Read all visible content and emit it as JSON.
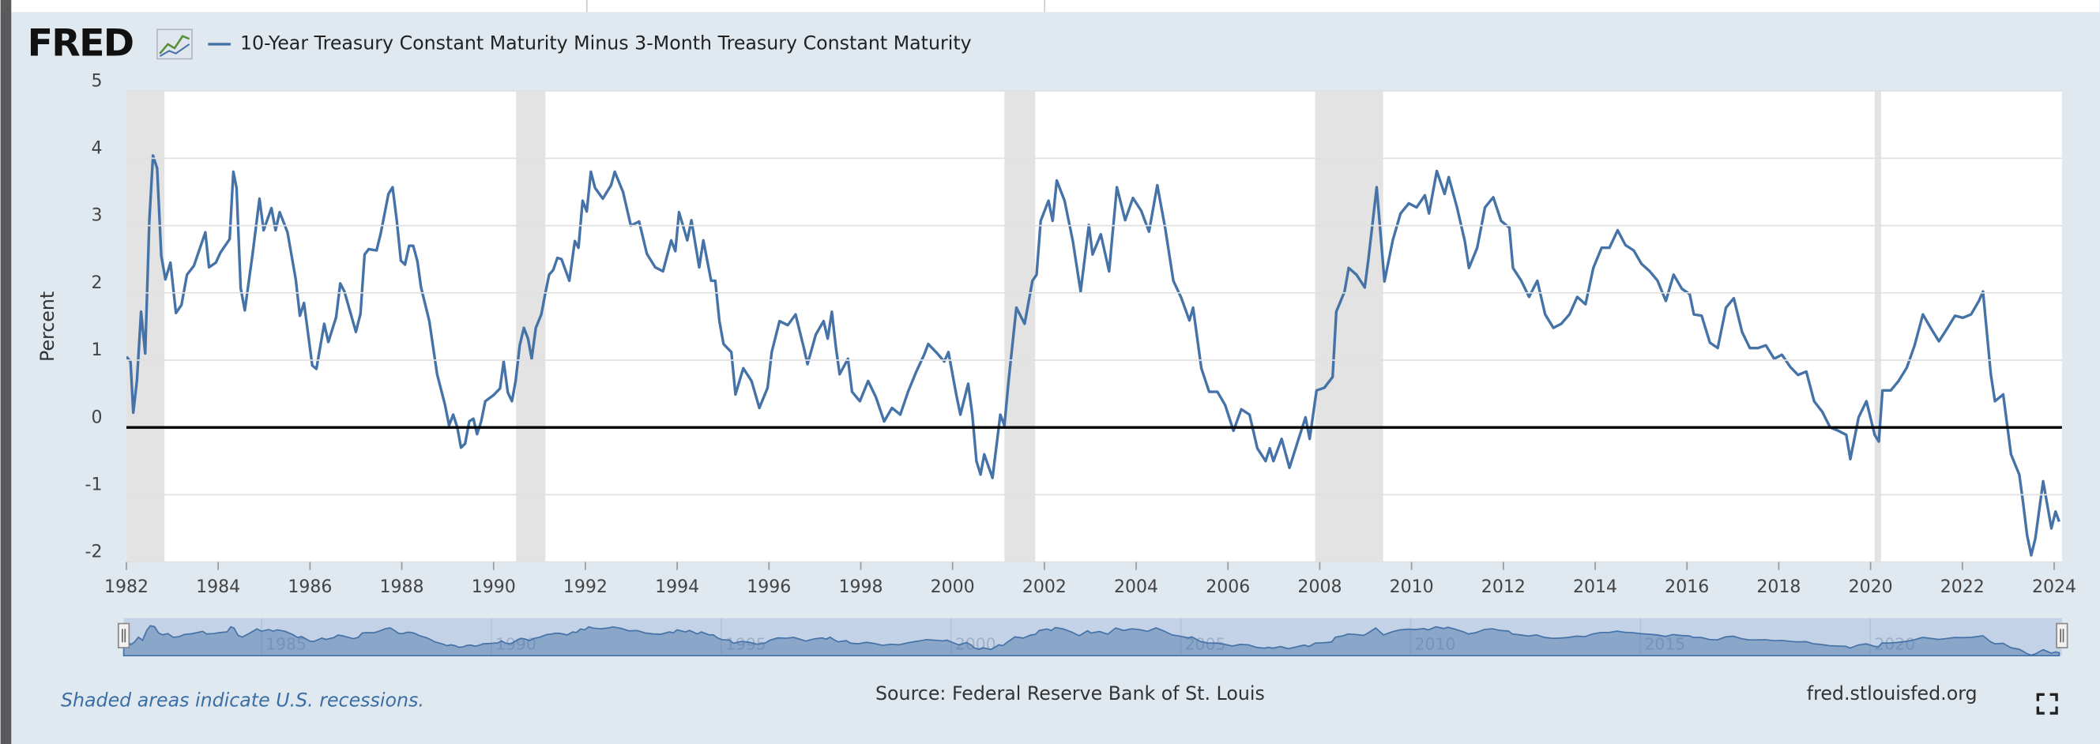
{
  "logo": "FRED",
  "chart_data": {
    "type": "line",
    "ylabel": "Percent",
    "xlim": [
      1982,
      2024.17
    ],
    "ylim": [
      -2,
      5
    ],
    "xticks": [
      1982,
      1984,
      1986,
      1988,
      1990,
      1992,
      1994,
      1996,
      1998,
      2000,
      2002,
      2004,
      2006,
      2008,
      2010,
      2012,
      2014,
      2016,
      2018,
      2020,
      2022,
      2024
    ],
    "yticks": [
      -2,
      -1,
      0,
      1,
      2,
      3,
      4,
      5
    ],
    "grid": true,
    "legend": "top-left",
    "reference_line": {
      "value": 0,
      "color": "#000000"
    },
    "recession_color": "#e3e3e3",
    "recessions": [
      [
        1981.58,
        1982.83
      ],
      [
        1990.49,
        1991.13
      ],
      [
        2001.13,
        2001.8
      ],
      [
        2007.9,
        2009.38
      ],
      [
        2020.09,
        2020.23
      ]
    ],
    "recession_note": "Shaded areas indicate U.S. recessions.",
    "source": "Source: Federal Reserve Bank of St. Louis",
    "site": "fred.stlouisfed.org",
    "navigator_xticks": [
      1985,
      1990,
      1995,
      2000,
      2005,
      2010,
      2015,
      2020
    ],
    "x": [
      1982.0,
      1982.09,
      1982.15,
      1982.23,
      1982.32,
      1982.41,
      1982.5,
      1982.58,
      1982.67,
      1982.76,
      1982.85,
      1982.96,
      1983.08,
      1983.2,
      1983.32,
      1983.47,
      1983.72,
      1983.8,
      1983.95,
      1984.05,
      1984.25,
      1984.33,
      1984.4,
      1984.49,
      1984.58,
      1984.75,
      1984.9,
      1984.99,
      1985.16,
      1985.25,
      1985.34,
      1985.51,
      1985.69,
      1985.78,
      1985.87,
      1986.05,
      1986.14,
      1986.31,
      1986.4,
      1986.57,
      1986.66,
      1986.75,
      1987.0,
      1987.1,
      1987.19,
      1987.28,
      1987.45,
      1987.54,
      1987.71,
      1987.8,
      1987.89,
      1987.98,
      1988.07,
      1988.16,
      1988.25,
      1988.34,
      1988.42,
      1988.6,
      1988.77,
      1988.94,
      1989.03,
      1989.12,
      1989.21,
      1989.29,
      1989.38,
      1989.47,
      1989.56,
      1989.64,
      1989.73,
      1989.82,
      1990.0,
      1990.14,
      1990.22,
      1990.31,
      1990.4,
      1990.48,
      1990.57,
      1990.66,
      1990.75,
      1990.83,
      1990.92,
      1991.04,
      1991.12,
      1991.21,
      1991.3,
      1991.39,
      1991.48,
      1991.65,
      1991.77,
      1991.85,
      1991.94,
      1992.03,
      1992.12,
      1992.21,
      1992.38,
      1992.56,
      1992.64,
      1992.82,
      1992.99,
      1993.17,
      1993.34,
      1993.52,
      1993.69,
      1993.87,
      1993.96,
      1994.04,
      1994.22,
      1994.31,
      1994.48,
      1994.57,
      1994.74,
      1994.83,
      1994.92,
      1995.01,
      1995.18,
      1995.27,
      1995.44,
      1995.62,
      1995.79,
      1995.97,
      1996.06,
      1996.23,
      1996.41,
      1996.58,
      1996.76,
      1996.84,
      1997.02,
      1997.19,
      1997.28,
      1997.37,
      1997.46,
      1997.54,
      1997.72,
      1997.81,
      1997.98,
      1998.16,
      1998.33,
      1998.51,
      1998.68,
      1998.86,
      1999.03,
      1999.21,
      1999.38,
      1999.47,
      1999.64,
      1999.82,
      1999.91,
      2000.08,
      2000.17,
      2000.34,
      2000.43,
      2000.52,
      2000.61,
      2000.69,
      2000.87,
      2001.04,
      2001.13,
      2001.22,
      2001.39,
      2001.57,
      2001.74,
      2001.83,
      2001.92,
      2002.09,
      2002.18,
      2002.27,
      2002.44,
      2002.62,
      2002.79,
      2002.97,
      2003.05,
      2003.23,
      2003.41,
      2003.58,
      2003.76,
      2003.93,
      2004.11,
      2004.28,
      2004.46,
      2004.63,
      2004.81,
      2004.98,
      2005.16,
      2005.24,
      2005.42,
      2005.59,
      2005.77,
      2005.94,
      2006.12,
      2006.29,
      2006.47,
      2006.64,
      2006.82,
      2006.91,
      2006.99,
      2007.17,
      2007.34,
      2007.52,
      2007.69,
      2007.78,
      2007.93,
      2008.1,
      2008.28,
      2008.36,
      2008.54,
      2008.63,
      2008.8,
      2008.98,
      2009.06,
      2009.24,
      2009.41,
      2009.59,
      2009.76,
      2009.94,
      2010.11,
      2010.29,
      2010.38,
      2010.55,
      2010.72,
      2010.81,
      2010.99,
      2011.16,
      2011.25,
      2011.43,
      2011.6,
      2011.78,
      2011.95,
      2012.13,
      2012.21,
      2012.39,
      2012.56,
      2012.74,
      2012.91,
      2013.09,
      2013.26,
      2013.44,
      2013.61,
      2013.79,
      2013.96,
      2014.14,
      2014.31,
      2014.49,
      2014.66,
      2014.84,
      2015.01,
      2015.19,
      2015.36,
      2015.54,
      2015.71,
      2015.89,
      2016.06,
      2016.15,
      2016.32,
      2016.5,
      2016.67,
      2016.85,
      2017.02,
      2017.2,
      2017.37,
      2017.55,
      2017.72,
      2017.9,
      2018.07,
      2018.25,
      2018.42,
      2018.6,
      2018.77,
      2018.95,
      2019.12,
      2019.3,
      2019.47,
      2019.56,
      2019.74,
      2019.91,
      2020.09,
      2020.18,
      2020.26,
      2020.44,
      2020.61,
      2020.79,
      2020.96,
      2021.14,
      2021.31,
      2021.49,
      2021.66,
      2021.84,
      2022.01,
      2022.19,
      2022.36,
      2022.45,
      2022.62,
      2022.71,
      2022.89,
      2023.06,
      2023.24,
      2023.32,
      2023.41,
      2023.5,
      2023.59,
      2023.76,
      2023.85,
      2023.94,
      2024.03,
      2024.11
    ],
    "series": [
      {
        "name": "10-Year Treasury Constant Maturity Minus 3-Month Treasury Constant Maturity",
        "color": "#4572a7",
        "values": [
          1.05,
          0.98,
          0.22,
          0.7,
          1.72,
          1.1,
          3.07,
          4.04,
          3.85,
          2.55,
          2.2,
          2.45,
          1.7,
          1.82,
          2.27,
          2.4,
          2.9,
          2.38,
          2.45,
          2.6,
          2.8,
          3.8,
          3.56,
          2.07,
          1.74,
          2.58,
          3.4,
          2.93,
          3.26,
          2.93,
          3.2,
          2.9,
          2.2,
          1.66,
          1.85,
          0.92,
          0.87,
          1.54,
          1.27,
          1.64,
          2.14,
          2.02,
          1.42,
          1.69,
          2.57,
          2.65,
          2.63,
          2.88,
          3.47,
          3.57,
          3.08,
          2.48,
          2.42,
          2.7,
          2.7,
          2.47,
          2.08,
          1.58,
          0.79,
          0.34,
          0.03,
          0.19,
          0.0,
          -0.3,
          -0.24,
          0.09,
          0.13,
          -0.1,
          0.09,
          0.39,
          0.48,
          0.58,
          0.98,
          0.52,
          0.39,
          0.69,
          1.22,
          1.48,
          1.32,
          1.02,
          1.48,
          1.68,
          1.97,
          2.27,
          2.34,
          2.52,
          2.5,
          2.18,
          2.77,
          2.67,
          3.37,
          3.21,
          3.8,
          3.56,
          3.4,
          3.6,
          3.8,
          3.5,
          3.0,
          3.06,
          2.58,
          2.38,
          2.32,
          2.78,
          2.62,
          3.2,
          2.78,
          3.08,
          2.38,
          2.78,
          2.18,
          2.18,
          1.58,
          1.24,
          1.12,
          0.49,
          0.88,
          0.69,
          0.29,
          0.59,
          1.12,
          1.58,
          1.52,
          1.68,
          1.18,
          0.94,
          1.38,
          1.58,
          1.32,
          1.72,
          1.18,
          0.79,
          1.02,
          0.53,
          0.39,
          0.69,
          0.45,
          0.09,
          0.29,
          0.19,
          0.53,
          0.83,
          1.08,
          1.24,
          1.12,
          0.98,
          1.12,
          0.49,
          0.19,
          0.65,
          0.19,
          -0.5,
          -0.7,
          -0.4,
          -0.75,
          0.19,
          0.03,
          0.69,
          1.78,
          1.54,
          2.18,
          2.27,
          3.07,
          3.37,
          3.07,
          3.67,
          3.37,
          2.77,
          2.02,
          3.01,
          2.57,
          2.87,
          2.32,
          3.57,
          3.08,
          3.41,
          3.22,
          2.91,
          3.6,
          2.97,
          2.18,
          1.93,
          1.59,
          1.78,
          0.88,
          0.53,
          0.53,
          0.33,
          -0.05,
          0.27,
          0.19,
          -0.31,
          -0.5,
          -0.31,
          -0.5,
          -0.17,
          -0.6,
          -0.21,
          0.15,
          -0.17,
          0.55,
          0.59,
          0.75,
          1.72,
          2.02,
          2.37,
          2.27,
          2.08,
          2.5,
          3.57,
          2.17,
          2.78,
          3.18,
          3.33,
          3.27,
          3.45,
          3.18,
          3.81,
          3.47,
          3.72,
          3.27,
          2.77,
          2.37,
          2.67,
          3.27,
          3.42,
          3.07,
          2.97,
          2.37,
          2.18,
          1.94,
          2.18,
          1.68,
          1.48,
          1.54,
          1.68,
          1.94,
          1.83,
          2.37,
          2.67,
          2.67,
          2.93,
          2.71,
          2.63,
          2.43,
          2.32,
          2.18,
          1.88,
          2.27,
          2.06,
          1.98,
          1.68,
          1.66,
          1.26,
          1.18,
          1.78,
          1.92,
          1.42,
          1.18,
          1.18,
          1.22,
          1.02,
          1.08,
          0.9,
          0.78,
          0.83,
          0.39,
          0.23,
          0.0,
          -0.05,
          -0.11,
          -0.47,
          0.15,
          0.39,
          -0.11,
          -0.21,
          0.55,
          0.55,
          0.69,
          0.89,
          1.22,
          1.68,
          1.48,
          1.28,
          1.46,
          1.66,
          1.63,
          1.68,
          1.88,
          2.02,
          0.79,
          0.39,
          0.49,
          -0.4,
          -0.7,
          -1.1,
          -1.6,
          -1.9,
          -1.65,
          -0.8,
          -1.15,
          -1.5,
          -1.25,
          -1.4
        ]
      }
    ]
  }
}
